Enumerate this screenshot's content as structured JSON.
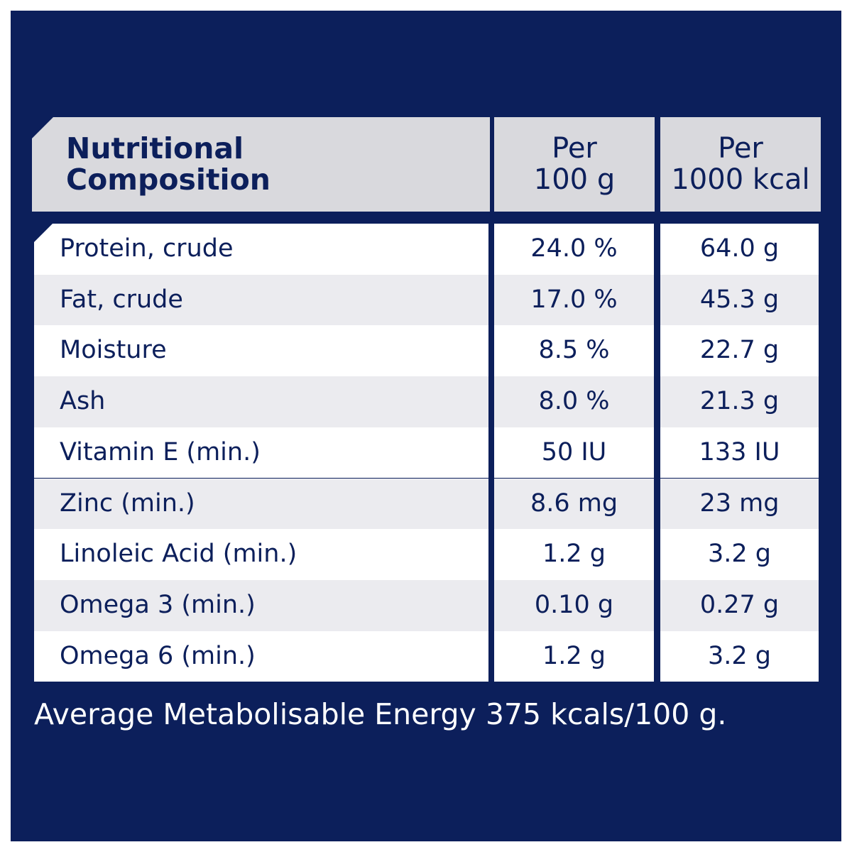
{
  "colors": {
    "background": "#0c1f5b",
    "header": "#d9d9dd",
    "row_alt": "#ebebef",
    "text": "#0c1f5b"
  },
  "header": {
    "title_line1": "Nutritional",
    "title_line2": "Composition",
    "col1_line1": "Per",
    "col1_line2": "100 g",
    "col2_line1": "Per",
    "col2_line2": "1000 kcal"
  },
  "rows": [
    {
      "name": "Protein, crude",
      "per100g": "24.0 %",
      "per1000kcal": "64.0 g"
    },
    {
      "name": "Fat, crude",
      "per100g": "17.0 %",
      "per1000kcal": "45.3 g"
    },
    {
      "name": "Moisture",
      "per100g": "8.5 %",
      "per1000kcal": "22.7 g"
    },
    {
      "name": "Ash",
      "per100g": "8.0 %",
      "per1000kcal": "21.3 g"
    },
    {
      "name": "Vitamin E (min.)",
      "per100g": "50 IU",
      "per1000kcal": "133 IU"
    },
    {
      "name": "Zinc (min.)",
      "per100g": "8.6 mg",
      "per1000kcal": "23 mg"
    },
    {
      "name": "Linoleic Acid (min.)",
      "per100g": "1.2 g",
      "per1000kcal": "3.2 g"
    },
    {
      "name": "Omega 3 (min.)",
      "per100g": "0.10 g",
      "per1000kcal": "0.27 g"
    },
    {
      "name": "Omega 6 (min.)",
      "per100g": "1.2 g",
      "per1000kcal": "3.2 g"
    }
  ],
  "footer": "Average Metabolisable Energy 375 kcals/100 g."
}
